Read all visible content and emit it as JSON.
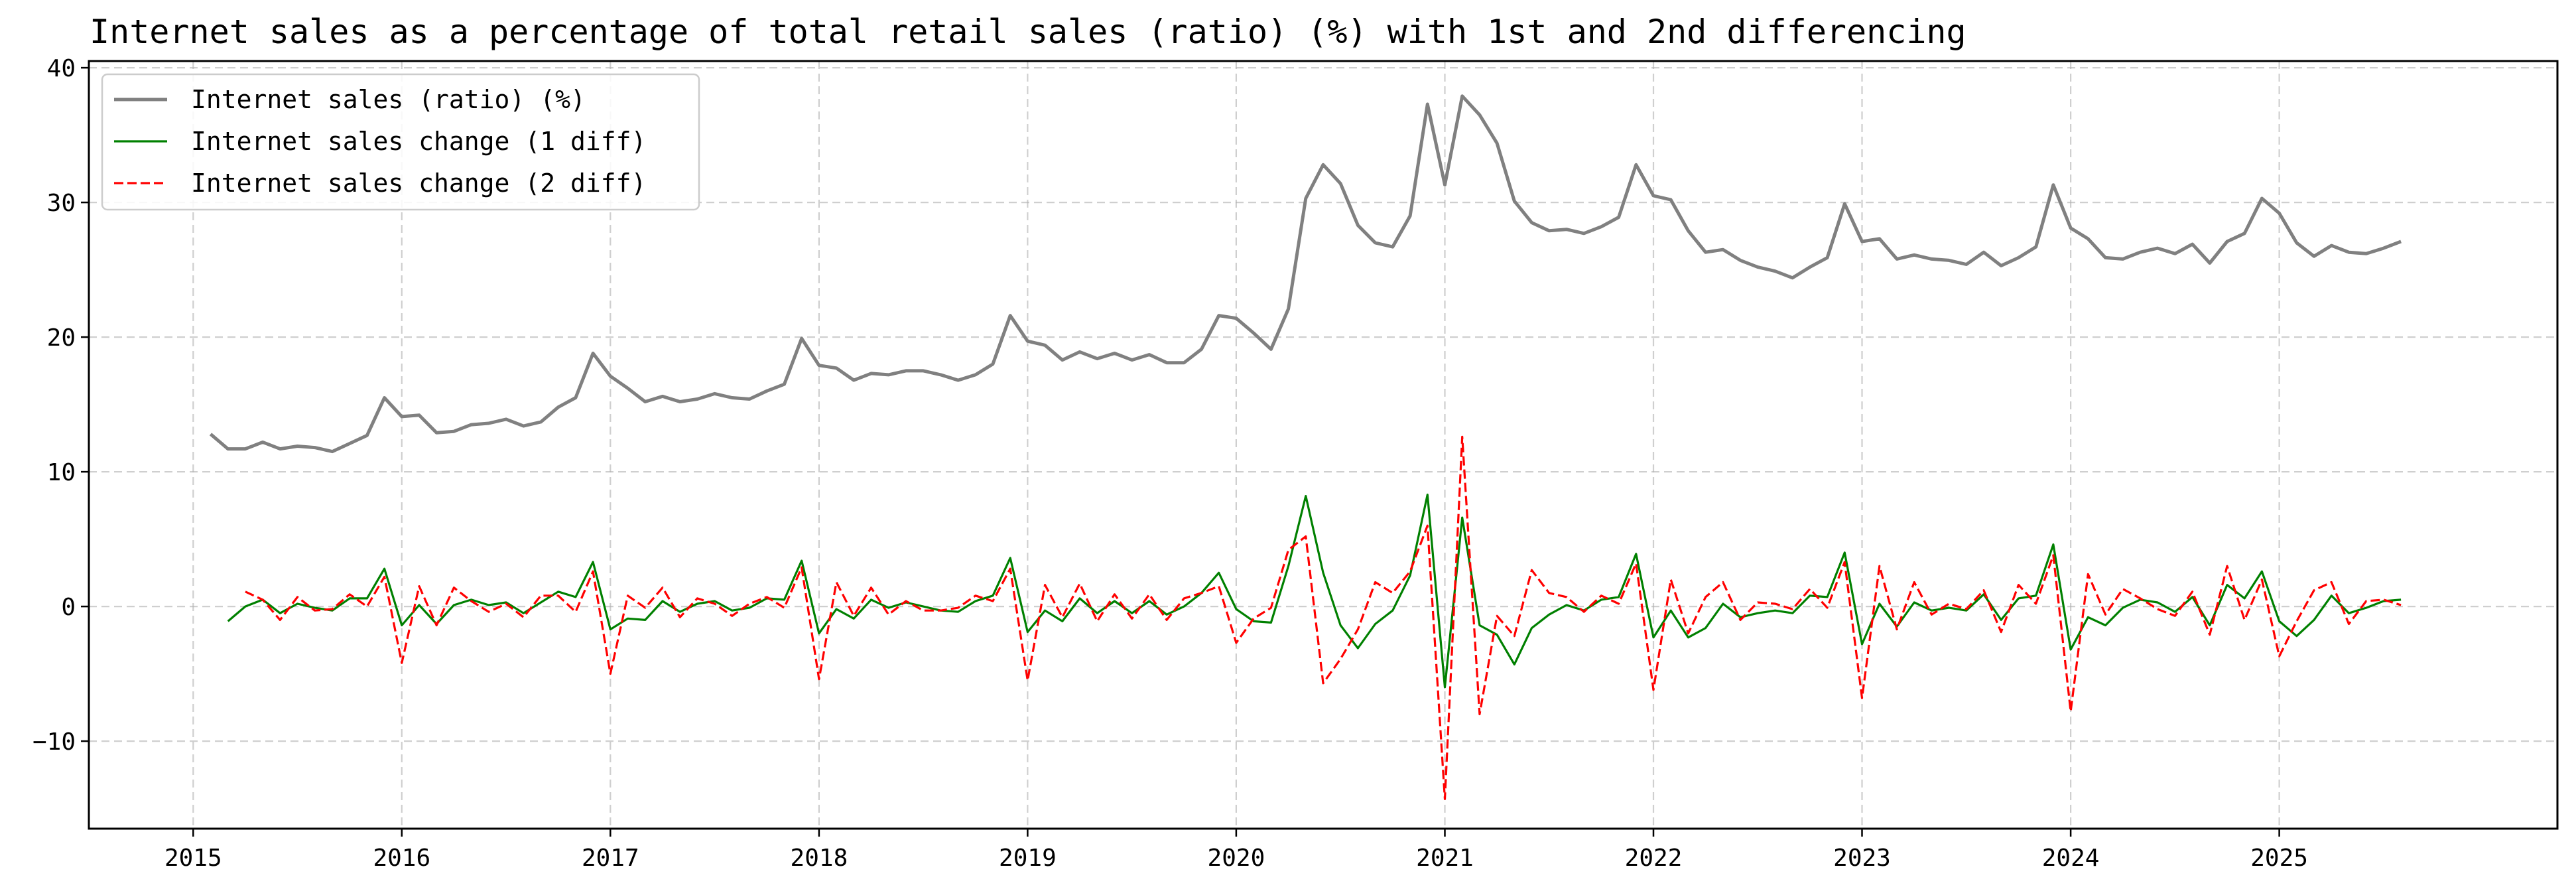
{
  "chart_data": {
    "type": "line",
    "title": "Internet sales as a percentage of total retail sales (ratio) (%) with 1st and 2nd differencing",
    "xlabel": "",
    "ylabel": "",
    "x_start": "2015-02",
    "x_ticks": [
      "2015",
      "2016",
      "2017",
      "2018",
      "2019",
      "2020",
      "2021",
      "2022",
      "2023",
      "2024",
      "2025"
    ],
    "xlim": [
      "2014-07",
      "2026-05"
    ],
    "y_ticks": [
      -10,
      0,
      10,
      20,
      30,
      40
    ],
    "ylim": [
      -16.5,
      40.5
    ],
    "grid": true,
    "legend_position": "upper-left",
    "series": [
      {
        "name": "Internet sales (ratio) (%)",
        "color": "#808080",
        "style": "solid",
        "values": [
          12.8,
          11.7,
          11.7,
          12.2,
          11.7,
          11.9,
          11.8,
          11.5,
          12.1,
          12.7,
          15.5,
          14.1,
          14.2,
          12.9,
          13.0,
          13.5,
          13.6,
          13.9,
          13.4,
          13.7,
          14.8,
          15.5,
          18.8,
          17.1,
          16.2,
          15.2,
          15.6,
          15.2,
          15.4,
          15.8,
          15.5,
          15.4,
          16.0,
          16.5,
          19.9,
          17.9,
          17.7,
          16.8,
          17.3,
          17.2,
          17.5,
          17.5,
          17.2,
          16.8,
          17.2,
          18.0,
          21.6,
          19.7,
          19.4,
          18.3,
          18.9,
          18.4,
          18.8,
          18.3,
          18.7,
          18.1,
          18.1,
          19.1,
          21.6,
          21.4,
          20.3,
          19.1,
          22.1,
          30.3,
          32.8,
          31.4,
          28.3,
          27.0,
          26.7,
          29.0,
          37.3,
          31.3,
          37.9,
          36.5,
          34.4,
          30.1,
          28.5,
          27.9,
          28.0,
          27.7,
          28.2,
          28.9,
          32.8,
          30.5,
          30.2,
          27.9,
          26.3,
          26.5,
          25.7,
          25.2,
          24.9,
          24.4,
          25.2,
          25.9,
          29.9,
          27.1,
          27.3,
          25.8,
          26.1,
          25.8,
          25.7,
          25.4,
          26.3,
          25.3,
          25.9,
          26.7,
          31.3,
          28.1,
          27.3,
          25.9,
          25.8,
          26.3,
          26.6,
          26.2,
          26.9,
          25.5,
          27.1,
          27.7,
          30.3,
          29.2,
          27.0,
          26.0,
          26.8,
          26.3,
          26.2,
          26.6,
          27.1
        ]
      },
      {
        "name": "Internet sales change (1 diff)",
        "color": "#008000",
        "style": "solid",
        "values": [
          null,
          -1.1,
          0.0,
          0.5,
          -0.5,
          0.2,
          -0.1,
          -0.3,
          0.6,
          0.6,
          2.8,
          -1.4,
          0.1,
          -1.3,
          0.1,
          0.5,
          0.1,
          0.3,
          -0.5,
          0.3,
          1.1,
          0.7,
          3.3,
          -1.7,
          -0.9,
          -1.0,
          0.4,
          -0.4,
          0.2,
          0.4,
          -0.3,
          -0.1,
          0.6,
          0.5,
          3.4,
          -2.0,
          -0.2,
          -0.9,
          0.5,
          -0.1,
          0.3,
          0.0,
          -0.3,
          -0.4,
          0.4,
          0.8,
          3.6,
          -1.9,
          -0.3,
          -1.1,
          0.6,
          -0.5,
          0.4,
          -0.5,
          0.4,
          -0.6,
          0.0,
          1.0,
          2.5,
          -0.2,
          -1.1,
          -1.2,
          3.0,
          8.2,
          2.5,
          -1.4,
          -3.1,
          -1.3,
          -0.3,
          2.3,
          8.3,
          -6.0,
          6.6,
          -1.4,
          -2.1,
          -4.3,
          -1.6,
          -0.6,
          0.1,
          -0.3,
          0.5,
          0.7,
          3.9,
          -2.3,
          -0.3,
          -2.3,
          -1.6,
          0.2,
          -0.8,
          -0.5,
          -0.3,
          -0.5,
          0.8,
          0.7,
          4.0,
          -2.8,
          0.2,
          -1.5,
          0.3,
          -0.3,
          -0.1,
          -0.3,
          0.9,
          -1.0,
          0.6,
          0.8,
          4.6,
          -3.2,
          -0.8,
          -1.4,
          -0.1,
          0.5,
          0.3,
          -0.4,
          0.7,
          -1.4,
          1.6,
          0.6,
          2.6,
          -1.1,
          -2.2,
          -1.0,
          0.8,
          -0.5,
          -0.1,
          0.4,
          0.5
        ]
      },
      {
        "name": "Internet sales change (2 diff)",
        "color": "#ff0000",
        "style": "dashed",
        "values": [
          null,
          null,
          1.1,
          0.5,
          -1.0,
          0.7,
          -0.3,
          -0.2,
          0.9,
          0.0,
          2.2,
          -4.2,
          1.5,
          -1.4,
          1.4,
          0.4,
          -0.4,
          0.2,
          -0.8,
          0.8,
          0.8,
          -0.4,
          2.6,
          -5.0,
          0.8,
          -0.1,
          1.4,
          -0.8,
          0.6,
          0.2,
          -0.7,
          0.2,
          0.7,
          -0.1,
          2.9,
          -5.4,
          1.8,
          -0.7,
          1.4,
          -0.6,
          0.4,
          -0.3,
          -0.3,
          -0.1,
          0.8,
          0.4,
          2.8,
          -5.5,
          1.6,
          -0.8,
          1.7,
          -1.1,
          0.9,
          -0.9,
          0.9,
          -1.0,
          0.6,
          1.0,
          1.5,
          -2.7,
          -0.9,
          -0.1,
          4.2,
          5.2,
          -5.7,
          -3.9,
          -1.7,
          1.8,
          1.0,
          2.6,
          6.0,
          -14.3,
          12.6,
          -8.0,
          -0.7,
          -2.2,
          2.7,
          1.0,
          0.7,
          -0.4,
          0.8,
          0.2,
          3.2,
          -6.2,
          2.0,
          -2.0,
          0.7,
          1.8,
          -1.0,
          0.3,
          0.2,
          -0.2,
          1.3,
          -0.1,
          3.3,
          -6.8,
          3.0,
          -1.7,
          1.8,
          -0.6,
          0.2,
          -0.2,
          1.2,
          -1.9,
          1.6,
          0.2,
          3.8,
          -7.8,
          2.4,
          -0.6,
          1.3,
          0.6,
          -0.2,
          -0.7,
          1.1,
          -2.1,
          3.0,
          -1.0,
          2.0,
          -3.7,
          -1.1,
          1.2,
          1.8,
          -1.3,
          0.4,
          0.5,
          0.1
        ]
      }
    ]
  }
}
